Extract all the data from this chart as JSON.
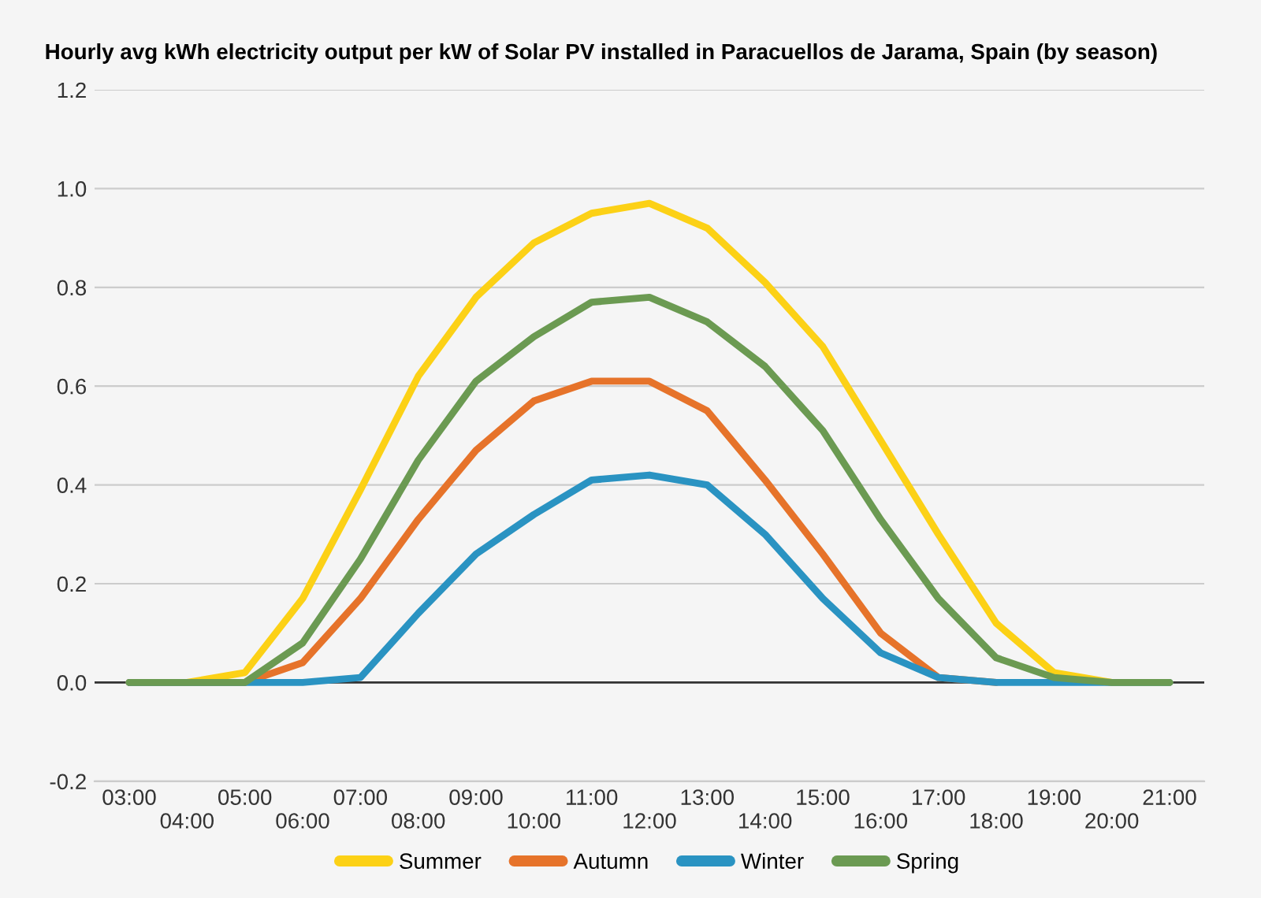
{
  "chart_data": {
    "type": "line",
    "title": "Hourly avg kWh electricity output per kW of Solar PV installed in Paracuellos de Jarama, Spain (by season)",
    "categories": [
      "03:00",
      "04:00",
      "05:00",
      "06:00",
      "07:00",
      "08:00",
      "09:00",
      "10:00",
      "11:00",
      "12:00",
      "13:00",
      "14:00",
      "15:00",
      "16:00",
      "17:00",
      "18:00",
      "19:00",
      "20:00",
      "21:00"
    ],
    "series": [
      {
        "name": "Summer",
        "color": "#fcd116",
        "values": [
          0,
          0,
          0.02,
          0.17,
          0.39,
          0.62,
          0.78,
          0.89,
          0.95,
          0.97,
          0.92,
          0.81,
          0.68,
          0.49,
          0.3,
          0.12,
          0.02,
          0,
          0
        ]
      },
      {
        "name": "Autumn",
        "color": "#e6732a",
        "values": [
          0,
          0,
          0,
          0.04,
          0.17,
          0.33,
          0.47,
          0.57,
          0.61,
          0.61,
          0.55,
          0.41,
          0.26,
          0.1,
          0.01,
          0,
          null,
          null,
          null
        ]
      },
      {
        "name": "Winter",
        "color": "#2a93c2",
        "values": [
          0,
          0,
          0,
          0,
          0.01,
          0.14,
          0.26,
          0.34,
          0.41,
          0.42,
          0.4,
          0.3,
          0.17,
          0.06,
          0.01,
          0,
          0,
          0,
          0
        ]
      },
      {
        "name": "Spring",
        "color": "#6b9a52",
        "values": [
          0,
          0,
          0,
          0.08,
          0.25,
          0.45,
          0.61,
          0.7,
          0.77,
          0.78,
          0.73,
          0.64,
          0.51,
          0.33,
          0.17,
          0.05,
          0.01,
          0,
          0
        ]
      }
    ],
    "ylim": [
      -0.2,
      1.2
    ],
    "yticks": [
      {
        "value": -0.2,
        "label": "-0.2"
      },
      {
        "value": 0,
        "label": "0.0"
      },
      {
        "value": 0.2,
        "label": "0.2"
      },
      {
        "value": 0.4,
        "label": "0.4"
      },
      {
        "value": 0.6,
        "label": "0.6"
      },
      {
        "value": 0.8,
        "label": "0.8"
      },
      {
        "value": 1.0,
        "label": "1.0"
      },
      {
        "value": 1.2,
        "label": "1.2"
      }
    ],
    "grid": "y",
    "legend": "bottom",
    "marker": "none",
    "line_style": "solid"
  }
}
